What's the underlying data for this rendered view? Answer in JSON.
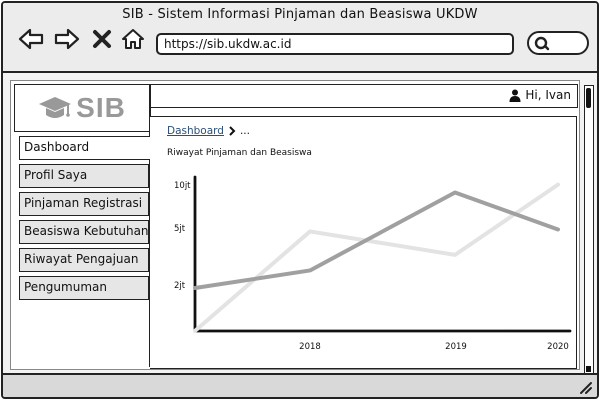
{
  "window": {
    "title": "SIB - Sistem Informasi Pinjaman dan Beasiswa UKDW"
  },
  "browser": {
    "url": "https://sib.ukdw.ac.id",
    "icons": [
      "back-arrow-icon",
      "forward-arrow-icon",
      "close-icon",
      "home-icon",
      "search-icon"
    ]
  },
  "logo": {
    "text": "SIB",
    "icon": "graduation-cap-icon"
  },
  "header": {
    "greeting": "Hi, Ivan",
    "icon": "user-icon"
  },
  "sidebar": {
    "items": [
      {
        "label": "Dashboard",
        "active": true
      },
      {
        "label": "Profil Saya",
        "active": false
      },
      {
        "label": "Pinjaman Registrasi",
        "active": false
      },
      {
        "label": "Beasiswa Kebutuhan",
        "active": false
      },
      {
        "label": "Riwayat Pengajuan",
        "active": false
      },
      {
        "label": "Pengumuman",
        "active": false
      }
    ]
  },
  "breadcrumb": {
    "current": "Dashboard",
    "trail": "..."
  },
  "chart_data": {
    "type": "line",
    "title": "Riwayat Pinjaman dan Beasiswa",
    "xlabel": "",
    "ylabel": "",
    "grid": false,
    "x_ticks": [
      "2018",
      "2019",
      "2020"
    ],
    "y_ticks": [
      "2jt",
      "5jt",
      "10jt"
    ],
    "series": [
      {
        "color": "#a0a0a0",
        "points": [
          {
            "x": "2017",
            "y": 2.0
          },
          {
            "x": "2018",
            "y": 2.9
          },
          {
            "x": "2019",
            "y": 6.9
          },
          {
            "x": "2020",
            "y": 5.0
          }
        ]
      },
      {
        "color": "#e3e3e3",
        "points": [
          {
            "x": "2017",
            "y": -0.2
          },
          {
            "x": "2018",
            "y": 4.9
          },
          {
            "x": "2019",
            "y": 3.7
          },
          {
            "x": "2020",
            "y": 7.3
          }
        ]
      }
    ]
  }
}
